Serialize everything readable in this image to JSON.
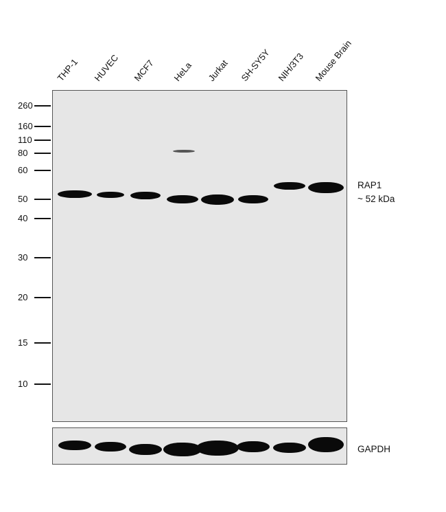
{
  "lanes": [
    "THP-1",
    "HUVEC",
    "MCF7",
    "HeLa",
    "Jurkat",
    "SH-SY5Y",
    "NIH/3T3",
    "Mouse Brain"
  ],
  "markers": [
    "260",
    "160",
    "110",
    "80",
    "60",
    "50",
    "40",
    "30",
    "20",
    "15",
    "10"
  ],
  "target": {
    "name": "RAP1",
    "size": "~ 52 kDa"
  },
  "loading_control": "GAPDH",
  "colors": {
    "membrane": "#e6e6e6",
    "band": "#0a0a0a"
  }
}
